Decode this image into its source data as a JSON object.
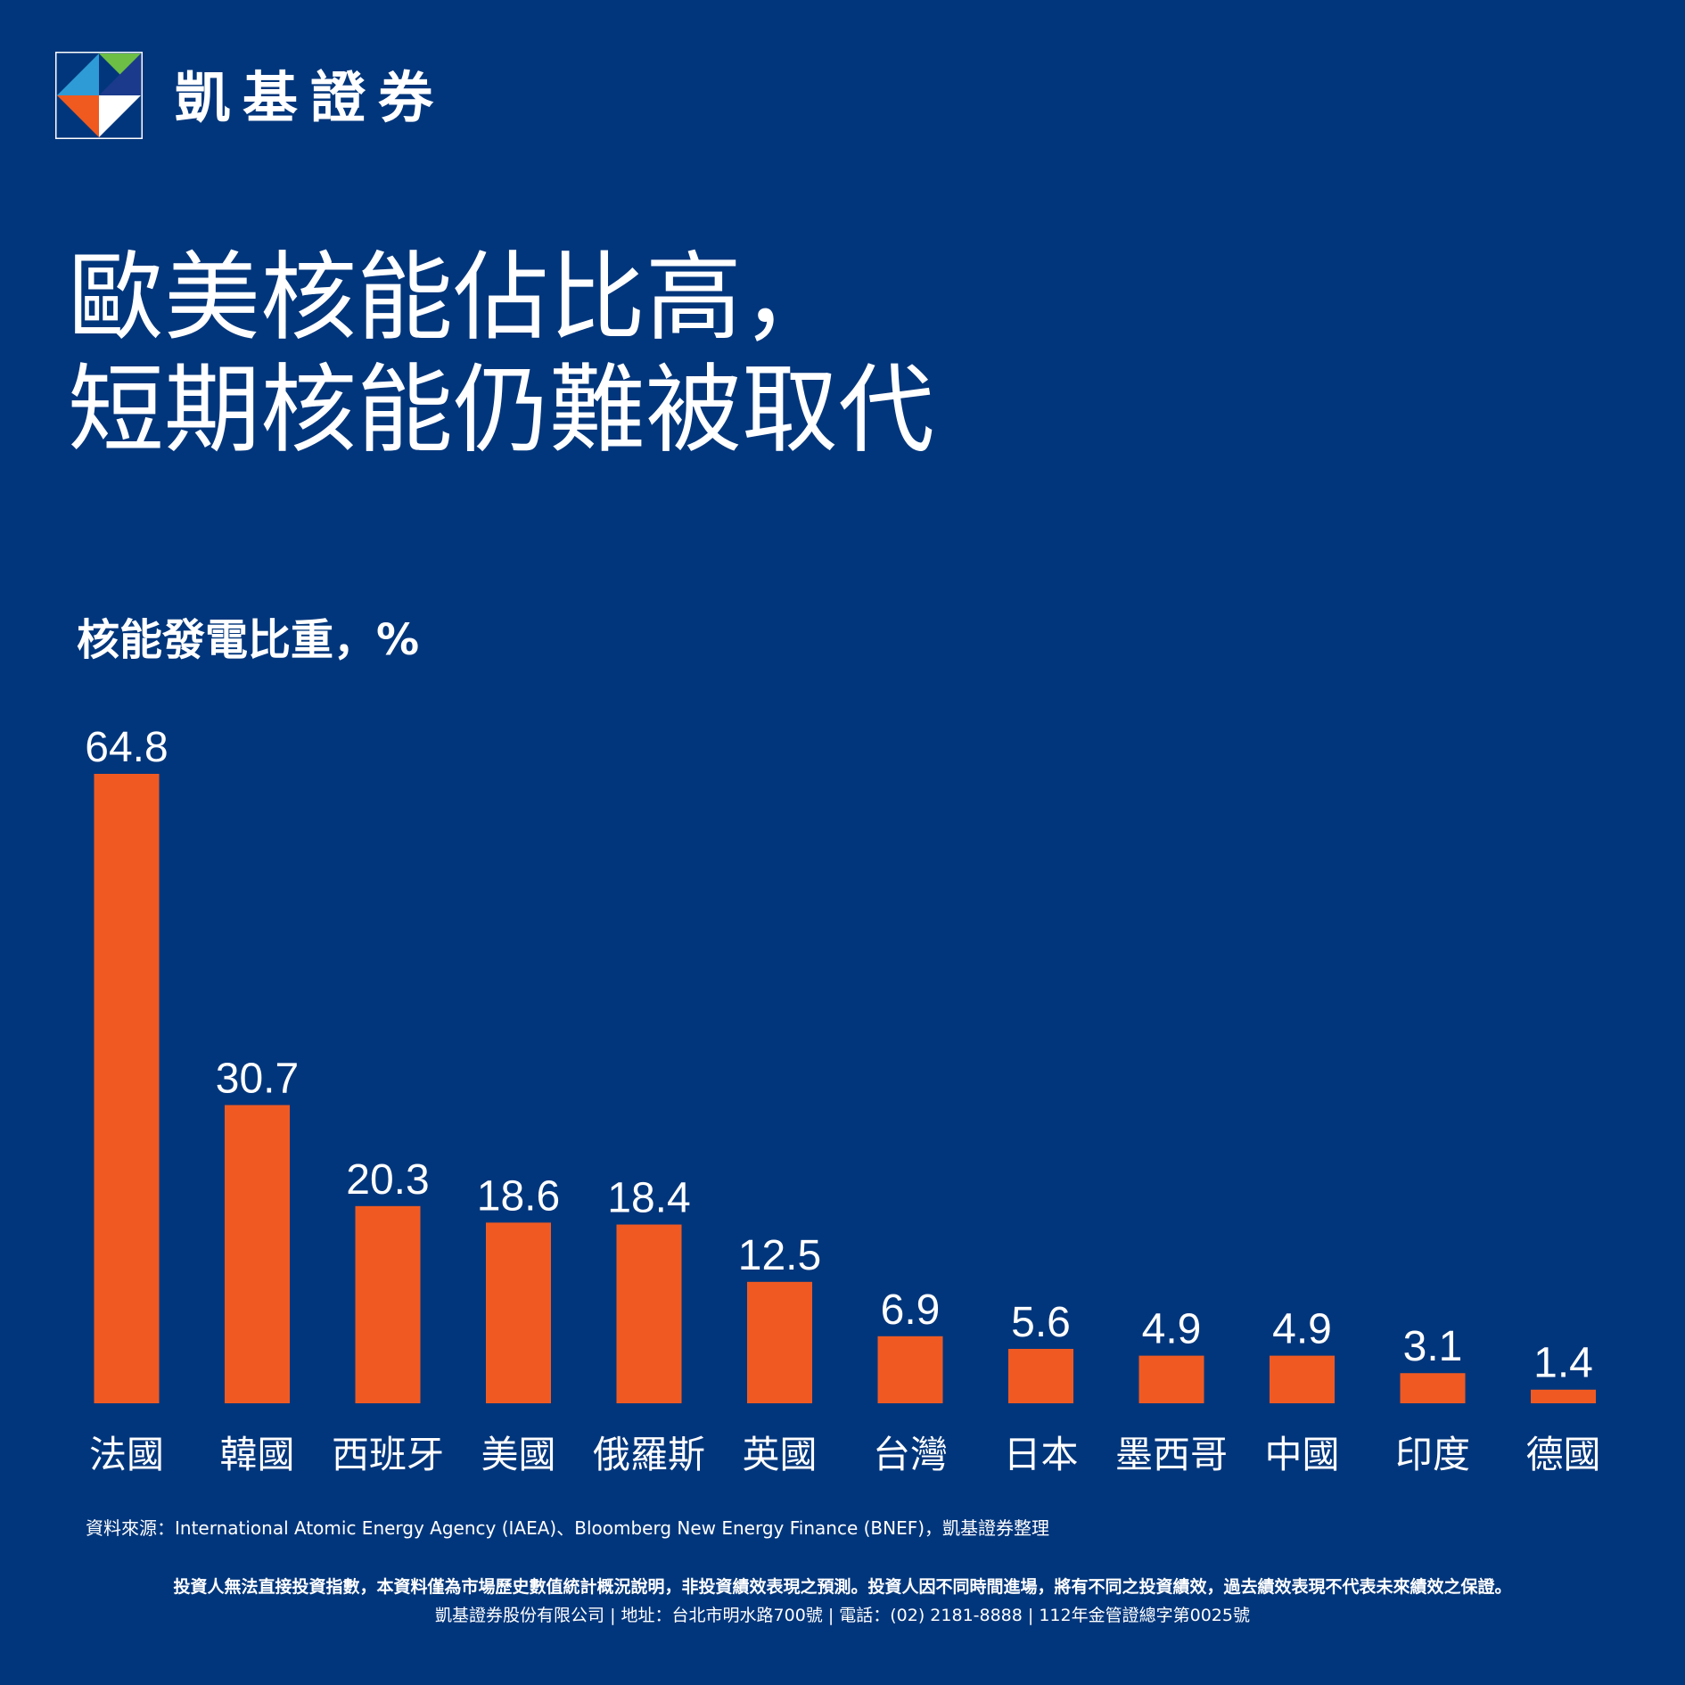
{
  "brand": {
    "name": "凱基證券",
    "logo_colors": [
      "#F05A1E",
      "#2E9BD6",
      "#6CBE45",
      "#1B3A8C",
      "#FFFFFF"
    ]
  },
  "headline": {
    "line1": "歐美核能佔比高，",
    "line2": "短期核能仍難被取代"
  },
  "colors": {
    "background": "#02367C",
    "bar": "#F05A22",
    "text": "#FFFFFF"
  },
  "chart_data": {
    "type": "bar",
    "title": "核能發電比重，%",
    "categories": [
      "法國",
      "韓國",
      "西班牙",
      "美國",
      "俄羅斯",
      "英國",
      "台灣",
      "日本",
      "墨西哥",
      "中國",
      "印度",
      "德國"
    ],
    "values": [
      64.8,
      30.7,
      20.3,
      18.6,
      18.4,
      12.5,
      6.9,
      5.6,
      4.9,
      4.9,
      3.1,
      1.4
    ],
    "value_labels": [
      "64.8",
      "30.7",
      "20.3",
      "18.6",
      "18.4",
      "12.5",
      "6.9",
      "5.6",
      "4.9",
      "4.9",
      "3.1",
      "1.4"
    ],
    "ylim": [
      0,
      64.8
    ],
    "grid": false,
    "xlabel": "",
    "ylabel": ""
  },
  "source": "資料來源：International Atomic Energy Agency (IAEA)、Bloomberg New Energy Finance (BNEF)，凱基證券整理",
  "disclaimer": "投資人無法直接投資指數，本資料僅為市場歷史數值統計概況說明，非投資績效表現之預測。投資人因不同時間進場，將有不同之投資績效，過去績效表現不代表未來績效之保證。",
  "company_info": "凱基證券股份有限公司 | 地址：台北市明水路700號 | 電話：(02) 2181-8888 | 112年金管證總字第0025號"
}
